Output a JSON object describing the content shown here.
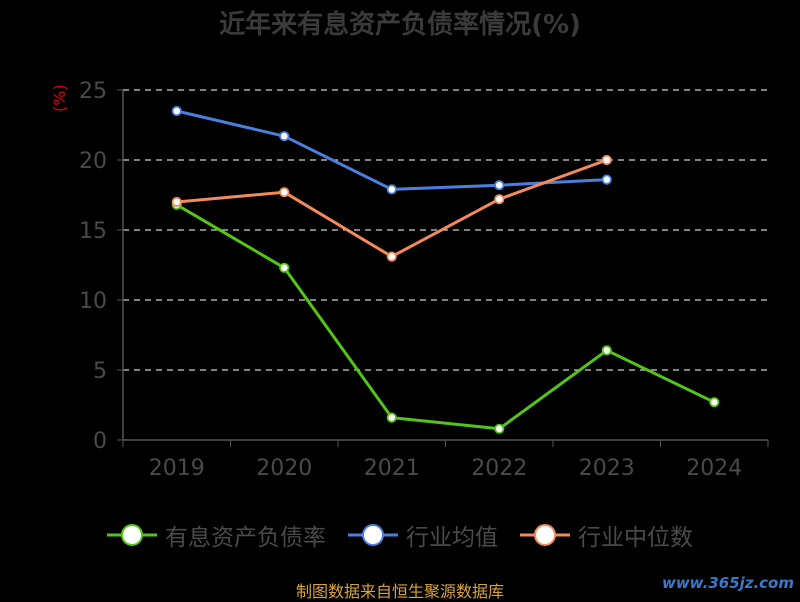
{
  "chart_data": {
    "type": "line",
    "title": "近年来有息资产负债率情况(%)",
    "ylabel": "(%)",
    "xlabel": "",
    "categories": [
      "2019",
      "2020",
      "2021",
      "2022",
      "2023",
      "2024"
    ],
    "ylim": [
      0,
      25
    ],
    "yticks": [
      0,
      5,
      10,
      15,
      20,
      25
    ],
    "grid": true,
    "legend_position": "bottom",
    "series": [
      {
        "name": "有息资产负债率",
        "color": "#52c41a",
        "values": [
          16.8,
          12.3,
          1.6,
          0.8,
          6.4,
          2.7
        ]
      },
      {
        "name": "行业均值",
        "color": "#4a7fe0",
        "values": [
          23.5,
          21.7,
          17.9,
          18.2,
          18.6,
          null
        ]
      },
      {
        "name": "行业中位数",
        "color": "#f28a5b",
        "values": [
          17.0,
          17.7,
          13.1,
          17.2,
          20.0,
          null
        ]
      }
    ]
  },
  "footer": {
    "source": "制图数据来自恒生聚源数据库",
    "watermark": "www.365jz.com"
  }
}
